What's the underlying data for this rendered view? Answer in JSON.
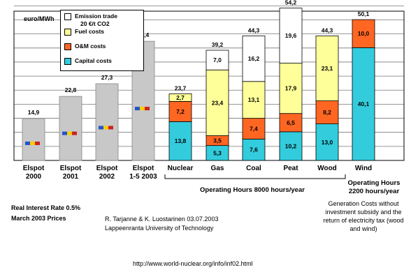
{
  "chart_data": {
    "type": "bar",
    "stacked": true,
    "ylabel": "euro/MWh",
    "ylim": [
      0,
      55
    ],
    "grid": true,
    "legend_position": "top-left",
    "categories": [
      {
        "line1": "Elspot",
        "line2": "2000"
      },
      {
        "line1": "Elspot",
        "line2": "2001"
      },
      {
        "line1": "Elspot",
        "line2": "2002"
      },
      {
        "line1": "Elspot",
        "line2": "1-5 2003"
      },
      {
        "line1": "Nuclear",
        "line2": ""
      },
      {
        "line1": "Gas",
        "line2": ""
      },
      {
        "line1": "Coal",
        "line2": ""
      },
      {
        "line1": "Peat",
        "line2": ""
      },
      {
        "line1": "Wood",
        "line2": ""
      },
      {
        "line1": "Wind",
        "line2": ""
      }
    ],
    "elspot_totals": [
      "14,9",
      "22,8",
      "27,3",
      "42,4"
    ],
    "elspot_values": [
      14.9,
      22.8,
      27.3,
      42.4
    ],
    "series": [
      {
        "name": "Capital costs",
        "color": "#33ccdd",
        "labels": [
          "",
          "",
          "",
          "",
          "13,8",
          "5,3",
          "7,6",
          "10,2",
          "13,0",
          "40,1"
        ],
        "values": [
          0,
          0,
          0,
          0,
          13.8,
          5.3,
          7.6,
          10.2,
          13.0,
          40.1
        ]
      },
      {
        "name": "O&M costs",
        "color": "#ff6622",
        "labels": [
          "",
          "",
          "",
          "",
          "7,2",
          "3,5",
          "7,4",
          "6,5",
          "8,2",
          "10,0"
        ],
        "values": [
          0,
          0,
          0,
          0,
          7.2,
          3.5,
          7.4,
          6.5,
          8.2,
          10.0
        ]
      },
      {
        "name": "Fuel costs",
        "color": "#ffff99",
        "labels": [
          "",
          "",
          "",
          "",
          "2,7",
          "23,4",
          "13,1",
          "17,9",
          "23,1",
          ""
        ],
        "values": [
          0,
          0,
          0,
          0,
          2.7,
          23.4,
          13.1,
          17.9,
          23.1,
          0
        ]
      },
      {
        "name": "Emission trade 20 €/t CO2",
        "color": "#ffffff",
        "labels": [
          "",
          "",
          "",
          "",
          "",
          "7,0",
          "16,2",
          "19,6",
          "",
          ""
        ],
        "values": [
          0,
          0,
          0,
          0,
          0,
          7.0,
          16.2,
          19.6,
          0,
          0
        ]
      }
    ],
    "totals": [
      "",
      "",
      "",
      "",
      "23,7",
      "39,2",
      "44,3",
      "54,2",
      "44,3",
      "50,1"
    ]
  },
  "legend": {
    "emission_line1": "Emission trade",
    "emission_line2": "20 €/t CO2",
    "fuel": "Fuel costs",
    "om": "O&M costs",
    "capital": "Capital costs"
  },
  "notes": {
    "operating_8000": "Operating Hours 8000 hours/year",
    "operating_2200_line1": "Operating Hours",
    "operating_2200_line2": "2200 hours/year",
    "interest": "Real Interest Rate 0.5%",
    "prices": "March 2003 Prices",
    "authors": "R. Tarjanne & K. Luostarinen 03.07.2003",
    "university": "Lappeenranta University of Technology",
    "generation_note": "Generation Costs without investment subsidy and the return of electricity tax (wood and wind)",
    "url": "http://www.world-nuclear.org/info/inf02.html"
  }
}
